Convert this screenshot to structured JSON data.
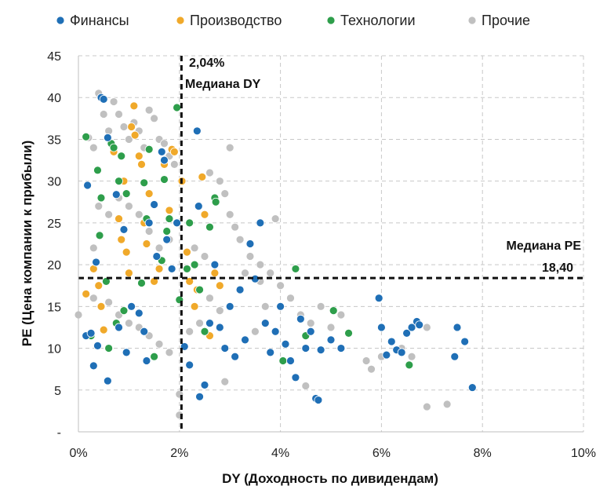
{
  "chart_data": {
    "type": "scatter",
    "title": "",
    "xlabel": "DY (Доходность по дивидендам)",
    "ylabel": "PE (Цена компании к прибыли)",
    "xlim": [
      0,
      0.1
    ],
    "ylim": [
      0,
      45
    ],
    "x_ticks": [
      0,
      0.02,
      0.04,
      0.06,
      0.08,
      0.1
    ],
    "x_tick_labels": [
      "0%",
      "2%",
      "4%",
      "6%",
      "8%",
      "10%"
    ],
    "y_ticks": [
      0,
      5,
      10,
      15,
      20,
      25,
      30,
      35,
      40,
      45
    ],
    "y_tick_labels": [
      "-",
      "5",
      "10",
      "15",
      "20",
      "25",
      "30",
      "35",
      "40",
      "45"
    ],
    "grid": true,
    "legend_position": "top",
    "annotations": {
      "median_dy_value": "2,04%",
      "median_dy_label": "Медиана DY",
      "median_pe_label": "Медиана PE",
      "median_pe_value": "18,40"
    },
    "median_dy": 0.0204,
    "median_pe": 18.4,
    "series": [
      {
        "name": "Финансы",
        "color": "#1f6fb6",
        "points": [
          [
            0.0045,
            40
          ],
          [
            0.005,
            39.8
          ],
          [
            0.0058,
            35.2
          ],
          [
            0.0018,
            29.5
          ],
          [
            0.0075,
            28.4
          ],
          [
            0.009,
            24.2
          ],
          [
            0.0035,
            20.3
          ],
          [
            0.0015,
            11.5
          ],
          [
            0.0025,
            11.8
          ],
          [
            0.003,
            7.9
          ],
          [
            0.0038,
            10.3
          ],
          [
            0.0058,
            6.1
          ],
          [
            0.008,
            12.5
          ],
          [
            0.0095,
            9.5
          ],
          [
            0.0105,
            15
          ],
          [
            0.012,
            14.2
          ],
          [
            0.013,
            12
          ],
          [
            0.0135,
            8.5
          ],
          [
            0.014,
            25
          ],
          [
            0.015,
            27.2
          ],
          [
            0.0155,
            21
          ],
          [
            0.0165,
            33.5
          ],
          [
            0.017,
            32.5
          ],
          [
            0.0175,
            23
          ],
          [
            0.0185,
            19.5
          ],
          [
            0.0195,
            25
          ],
          [
            0.021,
            10.2
          ],
          [
            0.022,
            8
          ],
          [
            0.0235,
            36
          ],
          [
            0.0238,
            27
          ],
          [
            0.024,
            4.2
          ],
          [
            0.025,
            5.6
          ],
          [
            0.026,
            13
          ],
          [
            0.027,
            20
          ],
          [
            0.028,
            12.5
          ],
          [
            0.029,
            10
          ],
          [
            0.03,
            15
          ],
          [
            0.031,
            9
          ],
          [
            0.032,
            17
          ],
          [
            0.033,
            11
          ],
          [
            0.034,
            22.5
          ],
          [
            0.035,
            18.3
          ],
          [
            0.036,
            25
          ],
          [
            0.037,
            13
          ],
          [
            0.038,
            9.5
          ],
          [
            0.039,
            12
          ],
          [
            0.04,
            15
          ],
          [
            0.041,
            10.5
          ],
          [
            0.042,
            8.5
          ],
          [
            0.043,
            6.5
          ],
          [
            0.044,
            13.5
          ],
          [
            0.045,
            10
          ],
          [
            0.046,
            12
          ],
          [
            0.047,
            4
          ],
          [
            0.0475,
            3.8
          ],
          [
            0.048,
            9.8
          ],
          [
            0.05,
            11
          ],
          [
            0.052,
            10
          ],
          [
            0.0595,
            16
          ],
          [
            0.06,
            12.5
          ],
          [
            0.061,
            9.2
          ],
          [
            0.062,
            10.8
          ],
          [
            0.063,
            9.8
          ],
          [
            0.064,
            9.5
          ],
          [
            0.065,
            11.8
          ],
          [
            0.066,
            12.5
          ],
          [
            0.067,
            13.2
          ],
          [
            0.0675,
            12.8
          ],
          [
            0.0745,
            9
          ],
          [
            0.075,
            12.5
          ],
          [
            0.0765,
            10.8
          ],
          [
            0.078,
            5.3
          ]
        ]
      },
      {
        "name": "Производство",
        "color": "#f0a92a",
        "points": [
          [
            0.0015,
            16.5
          ],
          [
            0.003,
            19.5
          ],
          [
            0.004,
            17.5
          ],
          [
            0.0045,
            15
          ],
          [
            0.005,
            12.2
          ],
          [
            0.007,
            33.5
          ],
          [
            0.008,
            25.5
          ],
          [
            0.0085,
            23
          ],
          [
            0.009,
            30
          ],
          [
            0.0095,
            21.5
          ],
          [
            0.01,
            19
          ],
          [
            0.0105,
            36.5
          ],
          [
            0.011,
            39
          ],
          [
            0.0112,
            35.5
          ],
          [
            0.012,
            33
          ],
          [
            0.0125,
            32
          ],
          [
            0.013,
            25
          ],
          [
            0.0135,
            22.5
          ],
          [
            0.014,
            28.5
          ],
          [
            0.015,
            18
          ],
          [
            0.016,
            19.5
          ],
          [
            0.017,
            32
          ],
          [
            0.018,
            26.5
          ],
          [
            0.0185,
            33.8
          ],
          [
            0.019,
            33.5
          ],
          [
            0.0205,
            30
          ],
          [
            0.0215,
            21.5
          ],
          [
            0.022,
            18
          ],
          [
            0.023,
            15
          ],
          [
            0.0235,
            17
          ],
          [
            0.0245,
            30.5
          ],
          [
            0.025,
            26
          ],
          [
            0.026,
            11.5
          ],
          [
            0.027,
            19
          ],
          [
            0.028,
            17.5
          ]
        ]
      },
      {
        "name": "Технологии",
        "color": "#2e9e4b",
        "points": [
          [
            0.0015,
            35.3
          ],
          [
            0.0025,
            11.5
          ],
          [
            0.0038,
            31.3
          ],
          [
            0.0042,
            23.5
          ],
          [
            0.0045,
            28
          ],
          [
            0.0055,
            18
          ],
          [
            0.006,
            10
          ],
          [
            0.0065,
            34.5
          ],
          [
            0.007,
            34
          ],
          [
            0.0075,
            13
          ],
          [
            0.008,
            30
          ],
          [
            0.0085,
            33
          ],
          [
            0.009,
            14.5
          ],
          [
            0.0095,
            28.5
          ],
          [
            0.0125,
            17.8
          ],
          [
            0.013,
            29.8
          ],
          [
            0.0135,
            25.5
          ],
          [
            0.014,
            33.8
          ],
          [
            0.015,
            9
          ],
          [
            0.0165,
            20.5
          ],
          [
            0.017,
            30.2
          ],
          [
            0.0175,
            24
          ],
          [
            0.018,
            25.5
          ],
          [
            0.0195,
            38.8
          ],
          [
            0.02,
            15.8
          ],
          [
            0.0215,
            19.5
          ],
          [
            0.022,
            25
          ],
          [
            0.023,
            20
          ],
          [
            0.024,
            17
          ],
          [
            0.025,
            12
          ],
          [
            0.026,
            24.5
          ],
          [
            0.027,
            28
          ],
          [
            0.0272,
            27.5
          ],
          [
            0.043,
            19.5
          ],
          [
            0.0405,
            8.5
          ],
          [
            0.045,
            11.5
          ],
          [
            0.0505,
            14.5
          ],
          [
            0.0535,
            11.8
          ],
          [
            0.0655,
            8
          ]
        ]
      },
      {
        "name": "Прочие",
        "color": "#c0c0c0",
        "points": [
          [
            0.0,
            14
          ],
          [
            0.002,
            35.2
          ],
          [
            0.003,
            34
          ],
          [
            0.003,
            22
          ],
          [
            0.004,
            40.5
          ],
          [
            0.005,
            38
          ],
          [
            0.006,
            36
          ],
          [
            0.007,
            39.5
          ],
          [
            0.008,
            38
          ],
          [
            0.009,
            36.5
          ],
          [
            0.01,
            35
          ],
          [
            0.011,
            37
          ],
          [
            0.012,
            36
          ],
          [
            0.013,
            34
          ],
          [
            0.014,
            38.5
          ],
          [
            0.015,
            37.5
          ],
          [
            0.016,
            35
          ],
          [
            0.017,
            34.5
          ],
          [
            0.018,
            33
          ],
          [
            0.019,
            32
          ],
          [
            0.02,
            4.5
          ],
          [
            0.02,
            2
          ],
          [
            0.004,
            27
          ],
          [
            0.006,
            26
          ],
          [
            0.008,
            28
          ],
          [
            0.01,
            27
          ],
          [
            0.012,
            26
          ],
          [
            0.014,
            24
          ],
          [
            0.016,
            22
          ],
          [
            0.018,
            23
          ],
          [
            0.003,
            16
          ],
          [
            0.006,
            15.5
          ],
          [
            0.008,
            14
          ],
          [
            0.01,
            13
          ],
          [
            0.012,
            12.5
          ],
          [
            0.014,
            11.5
          ],
          [
            0.016,
            10.5
          ],
          [
            0.018,
            9.5
          ],
          [
            0.022,
            12
          ],
          [
            0.024,
            13
          ],
          [
            0.026,
            31
          ],
          [
            0.028,
            30
          ],
          [
            0.029,
            28.5
          ],
          [
            0.03,
            26
          ],
          [
            0.031,
            24.5
          ],
          [
            0.032,
            23
          ],
          [
            0.034,
            21
          ],
          [
            0.036,
            20
          ],
          [
            0.038,
            19
          ],
          [
            0.039,
            25.5
          ],
          [
            0.03,
            34
          ],
          [
            0.035,
            12
          ],
          [
            0.037,
            15
          ],
          [
            0.04,
            17.5
          ],
          [
            0.042,
            16
          ],
          [
            0.044,
            14
          ],
          [
            0.046,
            13
          ],
          [
            0.048,
            15
          ],
          [
            0.05,
            12.5
          ],
          [
            0.052,
            14
          ],
          [
            0.029,
            6
          ],
          [
            0.045,
            5.5
          ],
          [
            0.06,
            9
          ],
          [
            0.057,
            8.5
          ],
          [
            0.058,
            7.5
          ],
          [
            0.064,
            10
          ],
          [
            0.066,
            9
          ],
          [
            0.069,
            12.5
          ],
          [
            0.069,
            3
          ],
          [
            0.073,
            3.3
          ],
          [
            0.033,
            19
          ],
          [
            0.036,
            18
          ],
          [
            0.026,
            16
          ],
          [
            0.028,
            14.5
          ],
          [
            0.023,
            22
          ],
          [
            0.025,
            21
          ]
        ]
      }
    ]
  }
}
